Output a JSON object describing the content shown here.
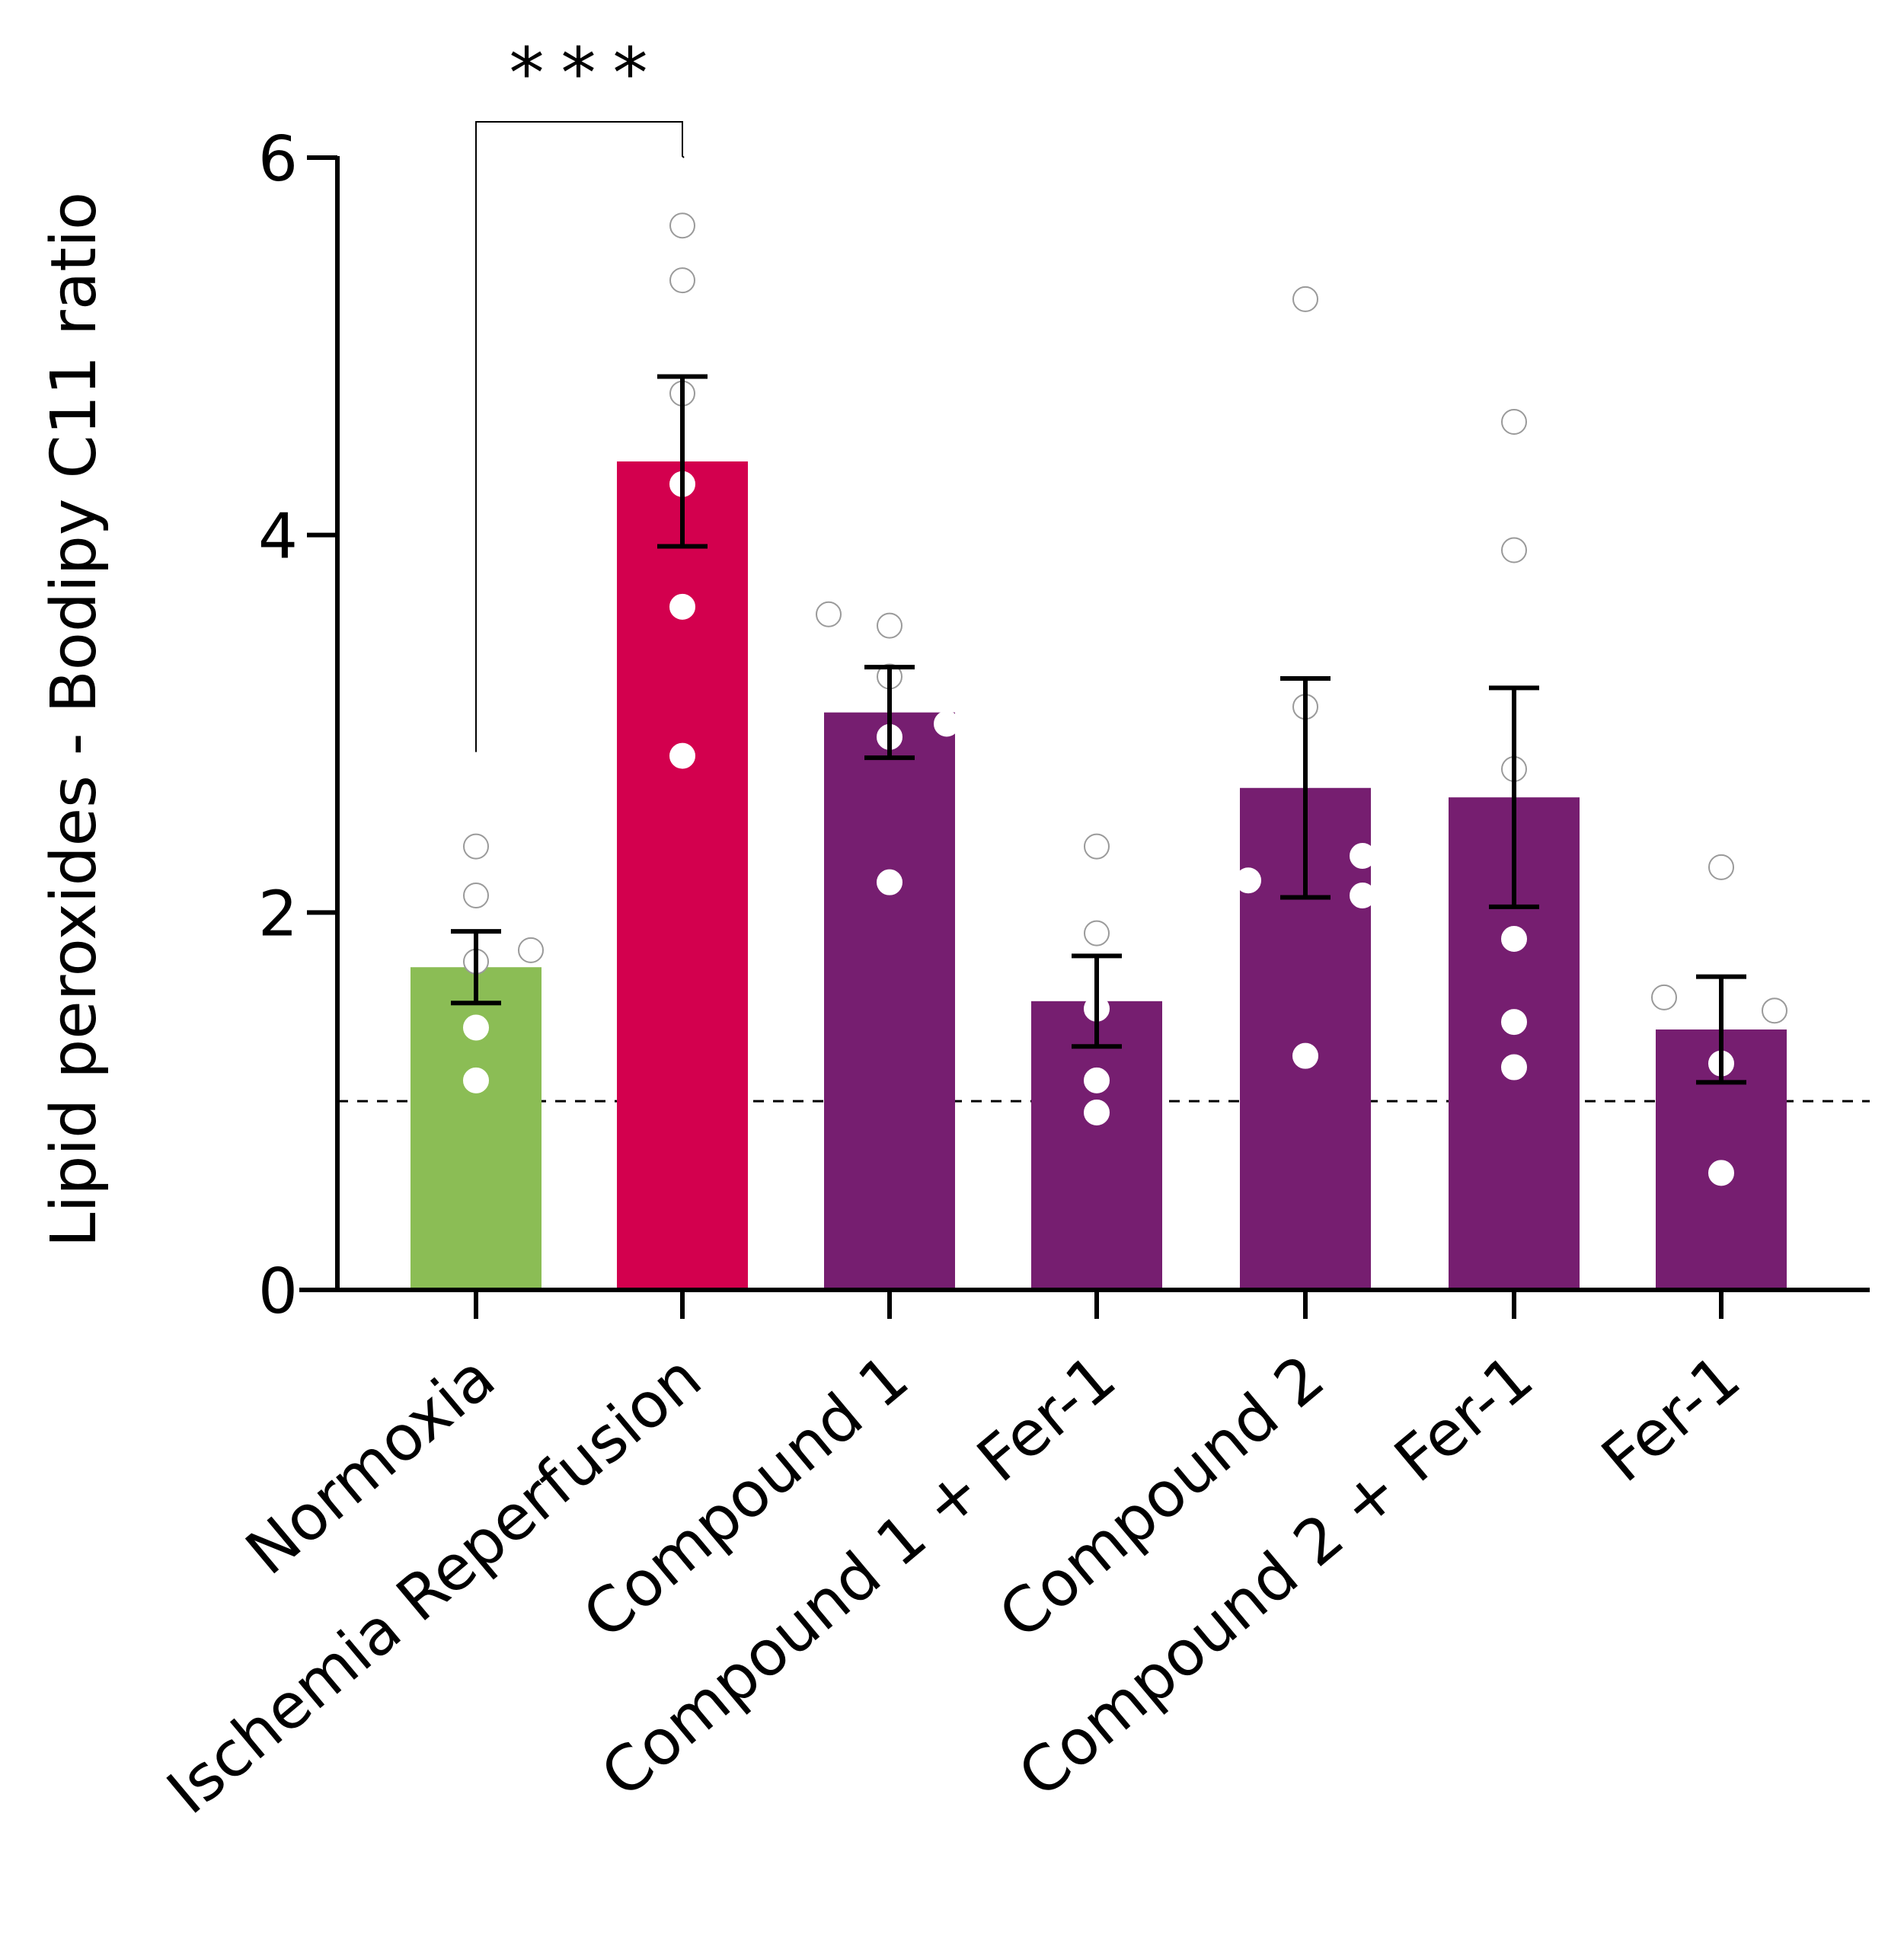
{
  "chart_data": {
    "type": "bar",
    "title": "",
    "xlabel": "",
    "ylabel": "Lipid peroxides - Bodipy C11 ratio",
    "ylim": [
      0,
      6
    ],
    "yticks": [
      "0",
      "2",
      "4",
      "6"
    ],
    "reference_line": 1,
    "significance": {
      "label": "***",
      "from": "Normoxia",
      "to": "Ischemia Reperfusion"
    },
    "categories": [
      "Normoxia",
      "Ischemia Reperfusion",
      "Compound 1",
      "Compound 1 + Fer-1",
      "Compound 2",
      "Compound 2 + Fer-1",
      "Fer-1"
    ],
    "values": [
      1.71,
      4.39,
      3.06,
      1.53,
      2.66,
      2.61,
      1.38
    ],
    "error": [
      0.19,
      0.45,
      0.24,
      0.24,
      0.58,
      0.58,
      0.28
    ],
    "colors": [
      "#8bbd55",
      "#d3004e",
      "#761e70",
      "#761e70",
      "#761e70",
      "#761e70",
      "#761e70"
    ],
    "points": [
      [
        2.35,
        2.09,
        1.8,
        1.74,
        1.39,
        1.11
      ],
      [
        5.64,
        5.35,
        4.75,
        4.27,
        3.62,
        2.83
      ],
      [
        3.58,
        3.52,
        3.25,
        3.0,
        2.93,
        2.16
      ],
      [
        2.35,
        1.89,
        1.49,
        1.11,
        0.94
      ],
      [
        5.25,
        3.09,
        2.3,
        2.17,
        2.09,
        1.24
      ],
      [
        4.6,
        3.92,
        2.76,
        1.86,
        1.42,
        1.18
      ],
      [
        2.24,
        1.55,
        1.48,
        1.2,
        0.62
      ]
    ]
  }
}
